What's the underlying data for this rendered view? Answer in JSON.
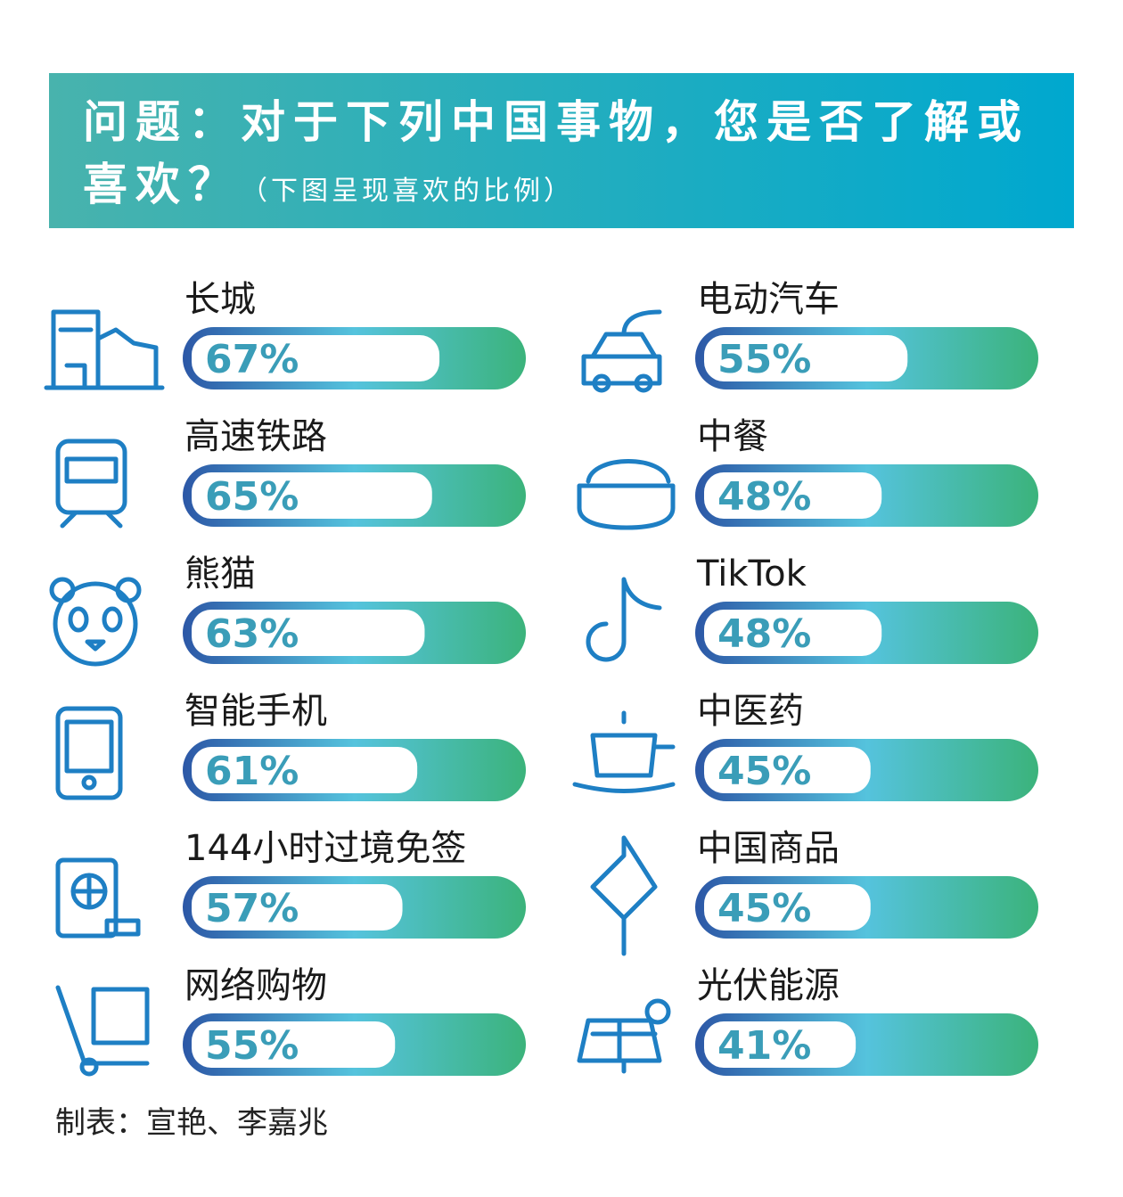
{
  "chart_data": {
    "type": "bar",
    "title": "问题：对于下列中国事物，您是否了解或喜欢？",
    "subtitle": "（下图呈现喜欢的比例）",
    "categories": [
      "长城",
      "高速铁路",
      "熊猫",
      "智能手机",
      "144小时过境免签",
      "网络购物",
      "电动汽车",
      "中餐",
      "TikTok",
      "中医药",
      "中国商品",
      "光伏能源"
    ],
    "values": [
      67,
      65,
      63,
      61,
      57,
      55,
      55,
      48,
      48,
      45,
      45,
      41
    ],
    "value_labels": [
      "67%",
      "65%",
      "63%",
      "61%",
      "57%",
      "55%",
      "55%",
      "48%",
      "48%",
      "45%",
      "45%",
      "41%"
    ],
    "colors": [
      "#2c57a6",
      "#55c3dd",
      "#3bb37b"
    ],
    "source": "制表：宣艳、李嘉兆"
  }
}
